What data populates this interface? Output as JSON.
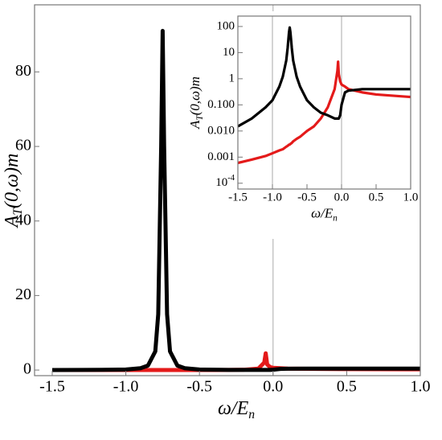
{
  "chart_data": [
    {
      "type": "line",
      "xlabel": [
        "ω/E",
        "n"
      ],
      "ylabel": [
        "A",
        "T",
        "(0,ω)m"
      ],
      "x": [
        -1.5,
        -1.3,
        -1.1,
        -1.0,
        -0.9,
        -0.85,
        -0.8,
        -0.78,
        -0.76,
        -0.75,
        -0.74,
        -0.72,
        -0.7,
        -0.65,
        -0.6,
        -0.5,
        -0.4,
        -0.3,
        -0.2,
        -0.1,
        -0.06,
        -0.05,
        -0.04,
        -0.02,
        0,
        0.05,
        0.1,
        0.3,
        0.5,
        1.0
      ],
      "series": [
        {
          "color": "#e41a1a",
          "values": [
            0.0006,
            0.0008,
            0.0011,
            0.0014,
            0.0018,
            0.002,
            0.0025,
            0.0027,
            0.003,
            0.003,
            0.0032,
            0.0035,
            0.004,
            0.005,
            0.006,
            0.01,
            0.015,
            0.03,
            0.08,
            0.4,
            2,
            4.5,
            1.5,
            0.8,
            0.6,
            0.5,
            0.4,
            0.3,
            0.25,
            0.2
          ]
        },
        {
          "color": "#000000",
          "values": [
            0.015,
            0.03,
            0.08,
            0.15,
            0.5,
            1.2,
            5,
            15,
            60,
            91,
            60,
            15,
            5,
            1.2,
            0.5,
            0.15,
            0.08,
            0.05,
            0.04,
            0.03,
            0.03,
            0.03,
            0.03,
            0.04,
            0.1,
            0.3,
            0.35,
            0.4,
            0.4,
            0.4
          ]
        }
      ],
      "xlim": [
        -1.5,
        1.0
      ],
      "ylim": [
        -1.5,
        98
      ],
      "xticks": [
        -1.5,
        {
          "value": -1.0,
          "label": "-1.0"
        },
        -0.5,
        {
          "value": 0,
          "label": "0.0"
        },
        0.5,
        {
          "value": 1.0,
          "label": "1.0"
        }
      ],
      "yticks": [
        0,
        20,
        40,
        60,
        80
      ],
      "vlines": [
        0
      ]
    },
    {
      "type": "line",
      "log_y": true,
      "xlabel": [
        "ω/E",
        "n"
      ],
      "ylabel": [
        "A",
        "T",
        "(0,ω)m"
      ],
      "x": [
        -1.5,
        -1.3,
        -1.1,
        -1.0,
        -0.9,
        -0.85,
        -0.8,
        -0.78,
        -0.76,
        -0.75,
        -0.74,
        -0.72,
        -0.7,
        -0.65,
        -0.6,
        -0.5,
        -0.4,
        -0.3,
        -0.2,
        -0.1,
        -0.06,
        -0.05,
        -0.04,
        -0.02,
        0,
        0.05,
        0.1,
        0.3,
        0.5,
        1.0
      ],
      "series": [
        {
          "color": "#e41a1a",
          "values": [
            0.0006,
            0.0008,
            0.0011,
            0.0014,
            0.0018,
            0.002,
            0.0025,
            0.0027,
            0.003,
            0.003,
            0.0032,
            0.0035,
            0.004,
            0.005,
            0.006,
            0.01,
            0.015,
            0.03,
            0.08,
            0.4,
            2,
            4.5,
            1.5,
            0.8,
            0.6,
            0.5,
            0.4,
            0.3,
            0.25,
            0.2
          ]
        },
        {
          "color": "#000000",
          "values": [
            0.015,
            0.03,
            0.08,
            0.15,
            0.5,
            1.2,
            5,
            15,
            60,
            91,
            60,
            15,
            5,
            1.2,
            0.5,
            0.15,
            0.08,
            0.05,
            0.04,
            0.03,
            0.03,
            0.03,
            0.03,
            0.04,
            0.1,
            0.3,
            0.35,
            0.4,
            0.4,
            0.4
          ]
        }
      ],
      "xlim": [
        -1.5,
        1.0
      ],
      "ylim": [
        6e-05,
        250
      ],
      "xticks": [
        -1.5,
        {
          "value": -1.0,
          "label": "-1.0"
        },
        -0.5,
        {
          "value": 0,
          "label": "0.0"
        },
        0.5,
        {
          "value": 1.0,
          "label": "1.0"
        }
      ],
      "yticks": [
        {
          "value": 0.0001,
          "label": "10^-4"
        },
        0.001,
        {
          "value": 0.01,
          "label": "0.010"
        },
        {
          "value": 0.1,
          "label": "0.100"
        },
        1,
        10,
        100
      ],
      "vlines": [
        -1,
        0
      ]
    }
  ]
}
